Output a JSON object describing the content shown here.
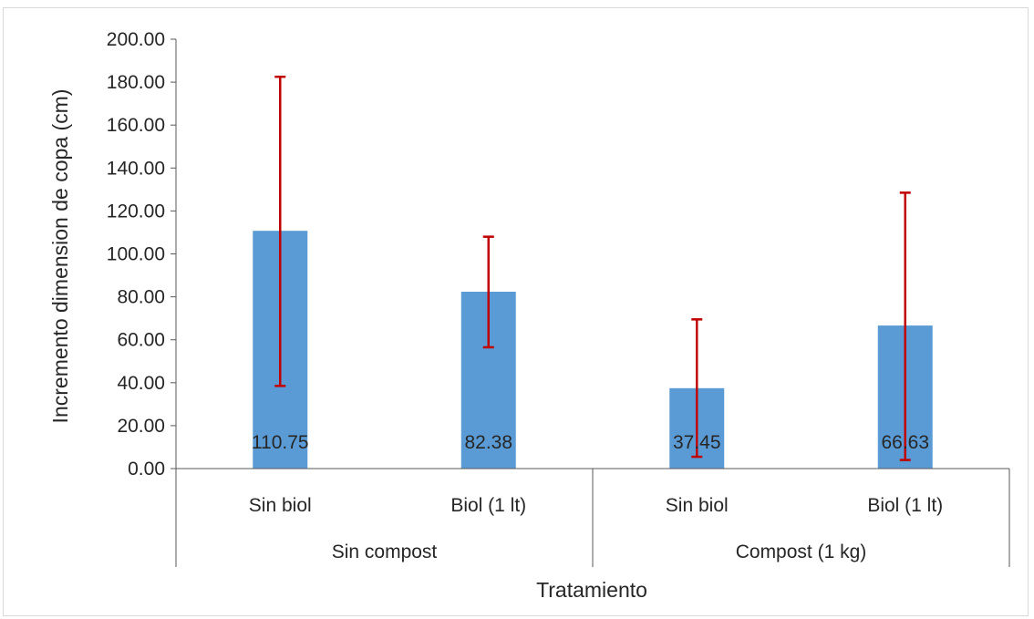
{
  "chart_data": {
    "type": "bar",
    "title": "",
    "ylabel": "Incremento dimension de copa (cm)",
    "xlabel": "Tratamiento",
    "ylim": [
      0,
      200
    ],
    "y_ticks": [
      "0.00",
      "20.00",
      "40.00",
      "60.00",
      "80.00",
      "100.00",
      "120.00",
      "140.00",
      "160.00",
      "180.00",
      "200.00"
    ],
    "groups": [
      {
        "label": "Sin compost",
        "categories": [
          "Sin biol",
          "Biol (1 lt)"
        ]
      },
      {
        "label": "Compost (1 kg)",
        "categories": [
          "Sin biol",
          "Biol (1 lt)"
        ]
      }
    ],
    "categories": [
      "Sin biol",
      "Biol (1 lt)",
      "Sin biol",
      "Biol (1 lt)"
    ],
    "values": [
      110.75,
      82.38,
      37.45,
      66.63
    ],
    "data_labels": [
      "110.75",
      "82.38",
      "37.45",
      "66.63"
    ],
    "error_low": [
      38.5,
      56.5,
      5.5,
      4.0
    ],
    "error_high": [
      182.5,
      108.0,
      69.5,
      128.5
    ],
    "grid": false,
    "legend": "none",
    "colors": {
      "bar": "#5b9bd5",
      "error_bar": "#c00000",
      "axis": "#595959",
      "text": "#262626"
    }
  }
}
